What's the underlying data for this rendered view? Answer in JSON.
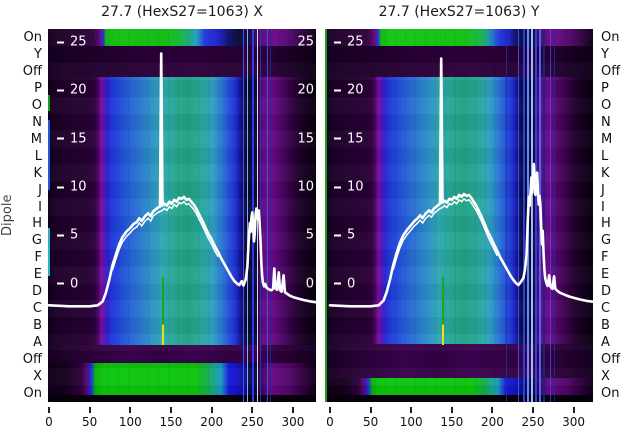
{
  "figure": {
    "titles": {
      "left": "27.7 (HexS27=1063) X",
      "right": "27.7 (HexS27=1063) Y"
    },
    "ylabel": "Dipole",
    "row_labels": [
      "On",
      "Y",
      "Off",
      "P",
      "O",
      "N",
      "M",
      "L",
      "K",
      "J",
      "I",
      "H",
      "G",
      "F",
      "E",
      "D",
      "C",
      "B",
      "A",
      "Off",
      "X",
      "On"
    ],
    "x_tick_labels": [
      "0",
      "50",
      "100",
      "150",
      "200",
      "250",
      "300"
    ],
    "inner_y_tick_labels": [
      "25",
      "20",
      "15",
      "10",
      "5",
      "0"
    ]
  },
  "colors": {
    "curve": "#ffffff",
    "heat_green": "#0fc60f",
    "heat_teal": "#23a384",
    "heat_blue": "#2346dc",
    "heat_magenta": "#7b0d9b",
    "heat_dark_purple": "#1d0127",
    "spike_line_green": "#1da51d",
    "spike_line_yellow": "#e6e600",
    "stripe_blue": "#3d5cf2"
  },
  "chart_data": {
    "type": "heatmap",
    "title_left": "27.7 (HexS27=1063) X",
    "title_right": "27.7 (HexS27=1063) Y",
    "x_axis": {
      "ticks": [
        0,
        50,
        100,
        150,
        200,
        250,
        300
      ],
      "range": [
        0,
        328
      ]
    },
    "y_axis_categories": [
      "On",
      "Y",
      "Off",
      "P",
      "O",
      "N",
      "M",
      "L",
      "K",
      "J",
      "I",
      "H",
      "G",
      "F",
      "E",
      "D",
      "C",
      "B",
      "A",
      "Off",
      "X",
      "On"
    ],
    "inner_value_axis": {
      "ticks": [
        25,
        20,
        15,
        10,
        5,
        0
      ],
      "shown_left_panel": "both_edges",
      "shown_right_panel": "left_edge_only"
    },
    "ylabel": "Dipole",
    "description": "Two spectral-colormap heatmaps (Dipole rows vs position 0-300) with white overlay intensity traces; narrow spike near x=138 reaching ~24, broad hump peaking ~9, noisy burst near x=245-265.",
    "panels": [
      {
        "name": "X",
        "overlay_series": [
          [
            0,
            -2.2
          ],
          [
            25,
            -2.3
          ],
          [
            50,
            -2.3
          ],
          [
            60,
            -2.2
          ],
          [
            66,
            -1.8
          ],
          [
            70,
            -0.9
          ],
          [
            74,
            0.4
          ],
          [
            78,
            1.9
          ],
          [
            82,
            3.0
          ],
          [
            86,
            4.0
          ],
          [
            90,
            4.8
          ],
          [
            95,
            5.4
          ],
          [
            100,
            5.8
          ],
          [
            104,
            6.2
          ],
          [
            108,
            6.4
          ],
          [
            111,
            6.8
          ],
          [
            114,
            6.5
          ],
          [
            118,
            7.0
          ],
          [
            122,
            7.3
          ],
          [
            125,
            7.0
          ],
          [
            128,
            7.5
          ],
          [
            131,
            7.7
          ],
          [
            134,
            7.9
          ],
          [
            136.5,
            8.0
          ],
          [
            138,
            23.8
          ],
          [
            139.5,
            8.1
          ],
          [
            142,
            8.3
          ],
          [
            145,
            8.1
          ],
          [
            148,
            8.5
          ],
          [
            151,
            8.3
          ],
          [
            154,
            8.7
          ],
          [
            157,
            8.5
          ],
          [
            160,
            8.9
          ],
          [
            163,
            8.8
          ],
          [
            166,
            9.0
          ],
          [
            169,
            8.7
          ],
          [
            172,
            8.8
          ],
          [
            175,
            8.5
          ],
          [
            178,
            8.2
          ],
          [
            181,
            7.8
          ],
          [
            184,
            7.3
          ],
          [
            187,
            6.8
          ],
          [
            190,
            6.3
          ],
          [
            193,
            5.7
          ],
          [
            196,
            5.2
          ],
          [
            200,
            4.6
          ],
          [
            204,
            3.9
          ],
          [
            208,
            3.3
          ],
          [
            212,
            2.6
          ],
          [
            216,
            2.0
          ],
          [
            220,
            1.4
          ],
          [
            224,
            0.8
          ],
          [
            228,
            0.3
          ],
          [
            231,
            0.05
          ],
          [
            234,
            -0.1
          ],
          [
            237,
            0.3
          ],
          [
            239,
            -0.15
          ],
          [
            242,
            0.5
          ],
          [
            244,
            1.8
          ],
          [
            245.5,
            4.5
          ],
          [
            247,
            6.3
          ],
          [
            248,
            5.4
          ],
          [
            249,
            6.9
          ],
          [
            250,
            7.4
          ],
          [
            251,
            6.1
          ],
          [
            252,
            4.4
          ],
          [
            253,
            5.3
          ],
          [
            254,
            7.2
          ],
          [
            255,
            7.8
          ],
          [
            256,
            7.4
          ],
          [
            257,
            6.7
          ],
          [
            258,
            7.6
          ],
          [
            259,
            6.3
          ],
          [
            260,
            4.5
          ],
          [
            261,
            2.3
          ],
          [
            262,
            0.9
          ],
          [
            263,
            0.15
          ],
          [
            264.5,
            -0.25
          ],
          [
            266,
            0.0
          ],
          [
            267.5,
            -0.4
          ],
          [
            269.5,
            -0.5
          ],
          [
            271.5,
            -0.6
          ],
          [
            273.5,
            -0.65
          ],
          [
            275.5,
            -0.5
          ],
          [
            277,
            1.6
          ],
          [
            278.5,
            -0.45
          ],
          [
            280.5,
            -0.6
          ],
          [
            282.5,
            1.2
          ],
          [
            284,
            -0.65
          ],
          [
            286,
            -0.8
          ],
          [
            288.5,
            0.9
          ],
          [
            290,
            -0.85
          ],
          [
            292.5,
            -1.0
          ],
          [
            296,
            -1.2
          ],
          [
            300,
            -1.35
          ],
          [
            306,
            -1.5
          ],
          [
            313,
            -1.65
          ],
          [
            321,
            -1.8
          ],
          [
            330,
            -1.9
          ]
        ],
        "stripes": [
          {
            "x": 72.9,
            "w": 1,
            "c": "#3d5cf2",
            "o": 0.95
          },
          {
            "x": 74.2,
            "w": 1,
            "c": "#8fb0ff",
            "o": 0.95
          },
          {
            "x": 76.3,
            "w": 2,
            "c": "#2b43e8",
            "o": 0.95
          },
          {
            "x": 77.9,
            "w": 1,
            "c": "#d8e6ff",
            "o": 0.95
          },
          {
            "x": 79.2,
            "w": 1,
            "c": "#2b43e8",
            "o": 0.7
          },
          {
            "x": 81.6,
            "w": 1,
            "c": "#3d5cf2",
            "o": 0.85
          },
          {
            "x": 82.8,
            "w": 1,
            "c": "#1c2a9e",
            "o": 0.9
          }
        ],
        "spike_column_pct": 42.4
      },
      {
        "name": "Y",
        "overlay_series": [
          [
            0,
            -2.2
          ],
          [
            25,
            -2.3
          ],
          [
            50,
            -2.3
          ],
          [
            60,
            -2.2
          ],
          [
            66,
            -1.7
          ],
          [
            70,
            -0.8
          ],
          [
            74,
            0.5
          ],
          [
            78,
            2.0
          ],
          [
            82,
            3.2
          ],
          [
            86,
            4.2
          ],
          [
            90,
            5.0
          ],
          [
            95,
            5.6
          ],
          [
            100,
            6.1
          ],
          [
            104,
            6.5
          ],
          [
            108,
            6.8
          ],
          [
            111,
            7.1
          ],
          [
            114,
            6.8
          ],
          [
            118,
            7.3
          ],
          [
            122,
            7.6
          ],
          [
            125,
            7.4
          ],
          [
            128,
            7.8
          ],
          [
            131,
            8.0
          ],
          [
            134,
            8.2
          ],
          [
            135.5,
            8.3
          ],
          [
            137,
            23.3
          ],
          [
            138.5,
            8.4
          ],
          [
            141,
            8.6
          ],
          [
            144,
            8.4
          ],
          [
            147,
            8.8
          ],
          [
            150,
            8.7
          ],
          [
            153,
            9.0
          ],
          [
            156,
            8.8
          ],
          [
            159,
            9.2
          ],
          [
            162,
            9.0
          ],
          [
            165,
            9.3
          ],
          [
            168,
            9.1
          ],
          [
            171,
            9.2
          ],
          [
            174,
            8.9
          ],
          [
            177,
            8.5
          ],
          [
            180,
            8.1
          ],
          [
            183,
            7.6
          ],
          [
            186,
            7.1
          ],
          [
            189,
            6.5
          ],
          [
            192,
            5.9
          ],
          [
            195,
            5.3
          ],
          [
            198,
            4.8
          ],
          [
            202,
            4.1
          ],
          [
            206,
            3.4
          ],
          [
            210,
            2.7
          ],
          [
            214,
            2.1
          ],
          [
            218,
            1.5
          ],
          [
            222,
            0.9
          ],
          [
            226,
            0.4
          ],
          [
            229,
            0.1
          ],
          [
            232,
            -0.1
          ],
          [
            235,
            0.2
          ],
          [
            238,
            0.6
          ],
          [
            240,
            1.4
          ],
          [
            242,
            3.0
          ],
          [
            243.5,
            6.4
          ],
          [
            245,
            9.0
          ],
          [
            246,
            8.1
          ],
          [
            247,
            9.6
          ],
          [
            248,
            11.0
          ],
          [
            249,
            9.4
          ],
          [
            250,
            10.4
          ],
          [
            251,
            12.4
          ],
          [
            252,
            11.2
          ],
          [
            253,
            9.2
          ],
          [
            254,
            10.7
          ],
          [
            255,
            11.5
          ],
          [
            256,
            9.7
          ],
          [
            257,
            8.2
          ],
          [
            258,
            9.1
          ],
          [
            259,
            8.3
          ],
          [
            260,
            6.1
          ],
          [
            261,
            4.1
          ],
          [
            262,
            5.5
          ],
          [
            263,
            3.1
          ],
          [
            264,
            1.5
          ],
          [
            265,
            0.6
          ],
          [
            266.5,
            0.1
          ],
          [
            268,
            -0.2
          ],
          [
            270,
            0.9
          ],
          [
            271.5,
            -0.3
          ],
          [
            274,
            -0.5
          ],
          [
            276,
            0.8
          ],
          [
            277.5,
            -0.5
          ],
          [
            280,
            -0.7
          ],
          [
            283,
            -0.9
          ],
          [
            286,
            -1.0
          ],
          [
            290,
            -1.15
          ],
          [
            295,
            -1.3
          ],
          [
            301,
            -1.45
          ],
          [
            308,
            -1.6
          ],
          [
            316,
            -1.75
          ],
          [
            330,
            -1.9
          ]
        ],
        "stripes": [
          {
            "x": 67.5,
            "w": 1,
            "c": "#26309e",
            "o": 0.8
          },
          {
            "x": 71.9,
            "w": 1,
            "c": "#3d5cf2",
            "o": 0.85
          },
          {
            "x": 73.8,
            "w": 2,
            "c": "#2b43e8",
            "o": 0.95
          },
          {
            "x": 75.3,
            "w": 2,
            "c": "#6b92ff",
            "o": 0.95
          },
          {
            "x": 76.9,
            "w": 2,
            "c": "#a8c4ff",
            "o": 0.95
          },
          {
            "x": 78.4,
            "w": 2,
            "c": "#2b43e8",
            "o": 0.95
          },
          {
            "x": 79.9,
            "w": 2,
            "c": "#4a6ef0",
            "o": 0.95
          },
          {
            "x": 81.4,
            "w": 2,
            "c": "#1a2488",
            "o": 0.9
          },
          {
            "x": 83.9,
            "w": 1,
            "c": "#3d5cf2",
            "o": 0.7
          },
          {
            "x": 85.4,
            "w": 1,
            "c": "#26309e",
            "o": 0.7
          }
        ],
        "spike_column_pct": 43.7
      }
    ]
  }
}
